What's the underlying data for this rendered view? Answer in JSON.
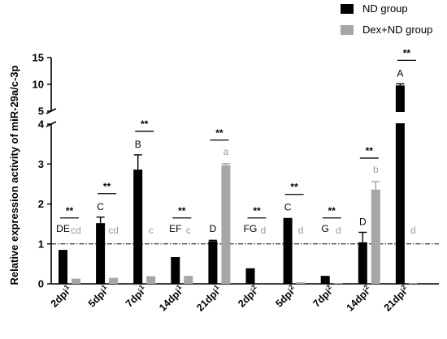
{
  "chart_data": {
    "type": "bar",
    "ylabel": "Relative expression activity of miR-29a/c-3p",
    "xlabel": "",
    "y_axis": {
      "broken": true,
      "lower_range": [
        0,
        4
      ],
      "upper_range": [
        5,
        15
      ],
      "lower_ticks": [
        "0",
        "1",
        "2",
        "3",
        "4"
      ],
      "upper_ticks": [
        "5",
        "10",
        "15"
      ]
    },
    "reference_line": 1,
    "categories": [
      {
        "base": "2dpi",
        "sup": "1"
      },
      {
        "base": "5dpi",
        "sup": "1"
      },
      {
        "base": "7dpi",
        "sup": "1"
      },
      {
        "base": "14dpi",
        "sup": "1"
      },
      {
        "base": "21dpi",
        "sup": "1"
      },
      {
        "base": "2dpi",
        "sup": "2"
      },
      {
        "base": "5dpi",
        "sup": "2"
      },
      {
        "base": "7dpi",
        "sup": "2"
      },
      {
        "base": "14dpi",
        "sup": "2"
      },
      {
        "base": "21dpi",
        "sup": "2"
      }
    ],
    "series": [
      {
        "name": "ND group",
        "color": "#000000",
        "letter_color": "#000000",
        "values": [
          0.85,
          1.52,
          2.86,
          0.67,
          1.07,
          0.39,
          1.65,
          0.2,
          1.04,
          9.8
        ],
        "errors": [
          0,
          0.15,
          0.37,
          0,
          0.02,
          0,
          0,
          0,
          0.25,
          0.3
        ],
        "letters": [
          "DE",
          "C",
          "B",
          "EF",
          "D",
          "FG",
          "C",
          "G",
          "D",
          "A"
        ]
      },
      {
        "name": "Dex+ND group",
        "color": "#a6a6a6",
        "letter_color": "#9a9a9a",
        "values": [
          0.13,
          0.15,
          0.19,
          0.2,
          2.97,
          0.0,
          0.04,
          0.02,
          2.36,
          0.02
        ],
        "errors": [
          0,
          0,
          0,
          0,
          0.04,
          0,
          0,
          0,
          0.2,
          0
        ],
        "letters": [
          "cd",
          "cd",
          "c",
          "c",
          "a",
          "d",
          "d",
          "d",
          "b",
          "d"
        ]
      }
    ],
    "significance": [
      "**",
      "**",
      "**",
      "**",
      "**",
      "**",
      "**",
      "**",
      "**",
      "**"
    ],
    "legend": [
      {
        "label": "ND group",
        "color": "#000000"
      },
      {
        "label": "Dex+ND group",
        "color": "#a6a6a6"
      }
    ],
    "legend_position": "top-right"
  }
}
